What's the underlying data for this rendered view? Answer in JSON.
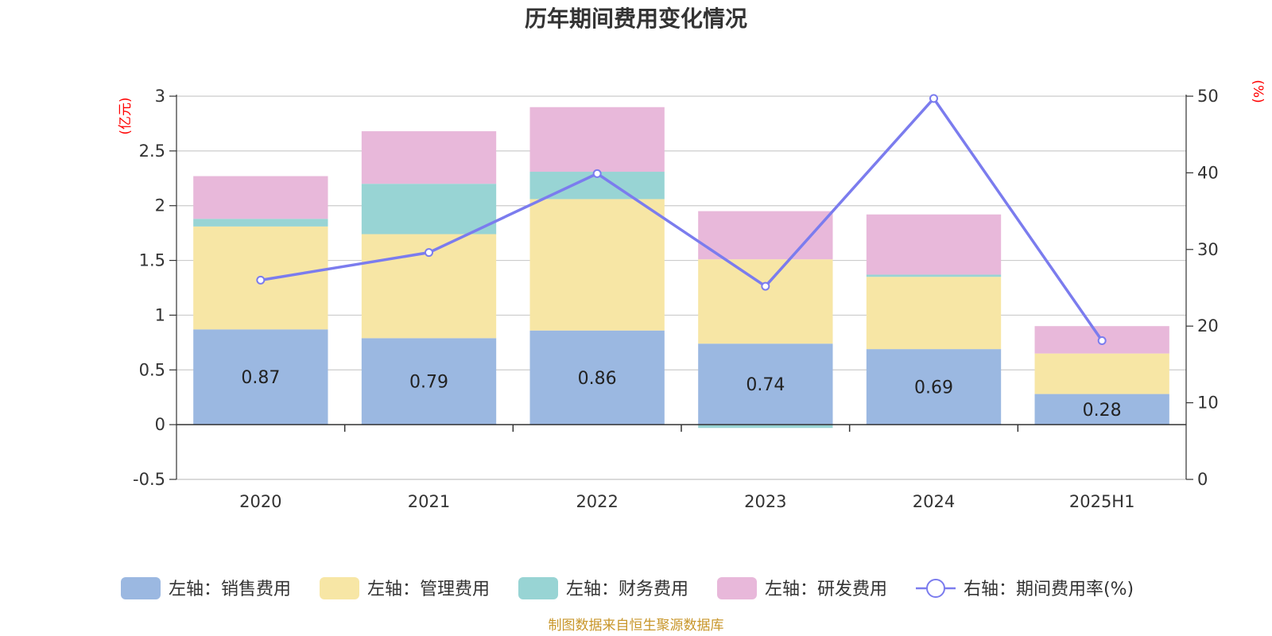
{
  "chart_data": {
    "type": "bar",
    "title": "历年期间费用变化情况",
    "categories": [
      "2020",
      "2021",
      "2022",
      "2023",
      "2024",
      "2025H1"
    ],
    "left_unit": "(亿元)",
    "right_unit": "(%)",
    "ylim_left": [
      -0.5,
      3
    ],
    "yticks_left": [
      "3",
      "2.5",
      "2",
      "1.5",
      "1",
      "0.5",
      "0",
      "-0.5"
    ],
    "ylim_right": [
      0,
      50
    ],
    "yticks_right": [
      "50",
      "40",
      "30",
      "20",
      "10",
      "0"
    ],
    "grid": true,
    "legend_position": "bottom",
    "series": [
      {
        "name": "左轴：销售费用",
        "axis": "left",
        "stack": true,
        "color": "#9bb8e1",
        "values": [
          0.87,
          0.79,
          0.86,
          0.74,
          0.69,
          0.28
        ],
        "labels": [
          "0.87",
          "0.79",
          "0.86",
          "0.74",
          "0.69",
          "0.28"
        ]
      },
      {
        "name": "左轴：管理费用",
        "axis": "left",
        "stack": true,
        "color": "#f7e6a5",
        "values": [
          0.94,
          0.95,
          1.2,
          0.77,
          0.66,
          0.37
        ]
      },
      {
        "name": "左轴：财务费用",
        "axis": "left",
        "stack": true,
        "color": "#98d4d4",
        "values": [
          0.07,
          0.46,
          0.25,
          -0.03,
          0.02,
          0.0
        ]
      },
      {
        "name": "左轴：研发费用",
        "axis": "left",
        "stack": true,
        "color": "#e8b8da",
        "values": [
          0.39,
          0.48,
          0.59,
          0.44,
          0.55,
          0.25
        ]
      },
      {
        "name": "右轴：期间费用率(%)",
        "axis": "right",
        "type": "line",
        "color": "#7b7cee",
        "values": [
          26.0,
          29.6,
          39.9,
          25.2,
          49.7,
          18.1
        ]
      }
    ],
    "source_note": "制图数据来自恒生聚源数据库"
  }
}
